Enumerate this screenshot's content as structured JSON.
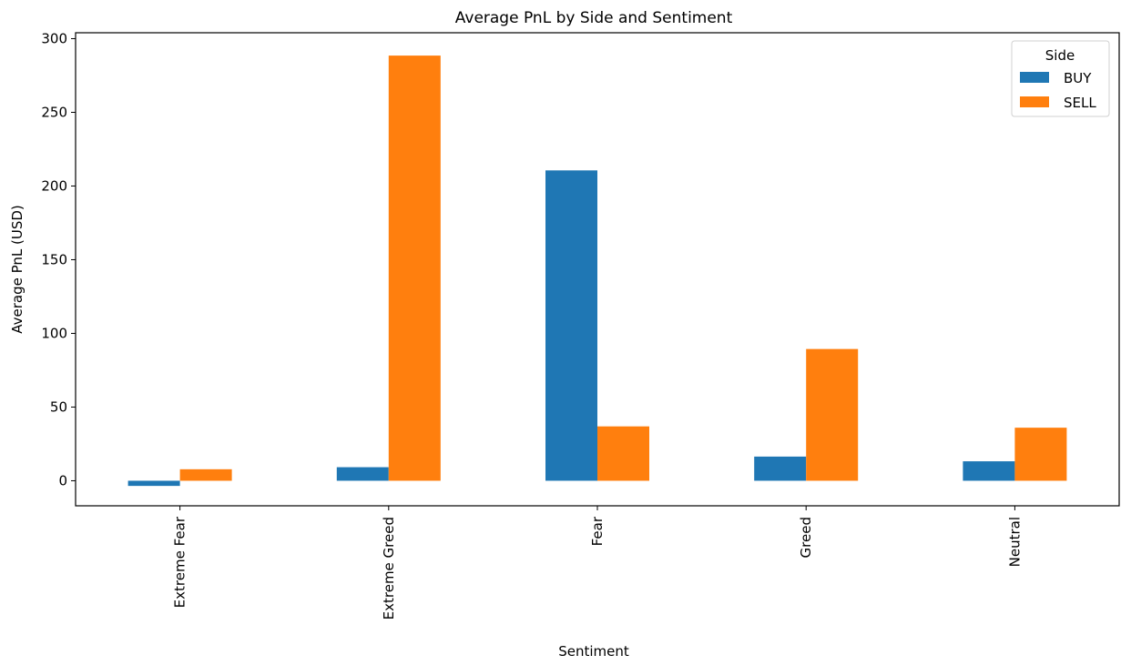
{
  "chart_data": {
    "type": "bar",
    "title": "Average PnL by Side and Sentiment",
    "xlabel": "Sentiment",
    "ylabel": "Average PnL (USD)",
    "categories": [
      "Extreme Fear",
      "Extreme Greed",
      "Fear",
      "Greed",
      "Neutral"
    ],
    "series": [
      {
        "name": "BUY",
        "values": [
          -3.5,
          9.2,
          210.6,
          16.4,
          13.2
        ],
        "color": "#1f77b4"
      },
      {
        "name": "SELL",
        "values": [
          7.8,
          288.5,
          36.9,
          89.4,
          36.0
        ],
        "color": "#ff7f0e"
      }
    ],
    "ylim": [
      -17,
      304
    ],
    "yticks": [
      0,
      50,
      100,
      150,
      200,
      250,
      300
    ],
    "grid": false,
    "legend": {
      "title": "Side",
      "placement": "top-right"
    }
  }
}
